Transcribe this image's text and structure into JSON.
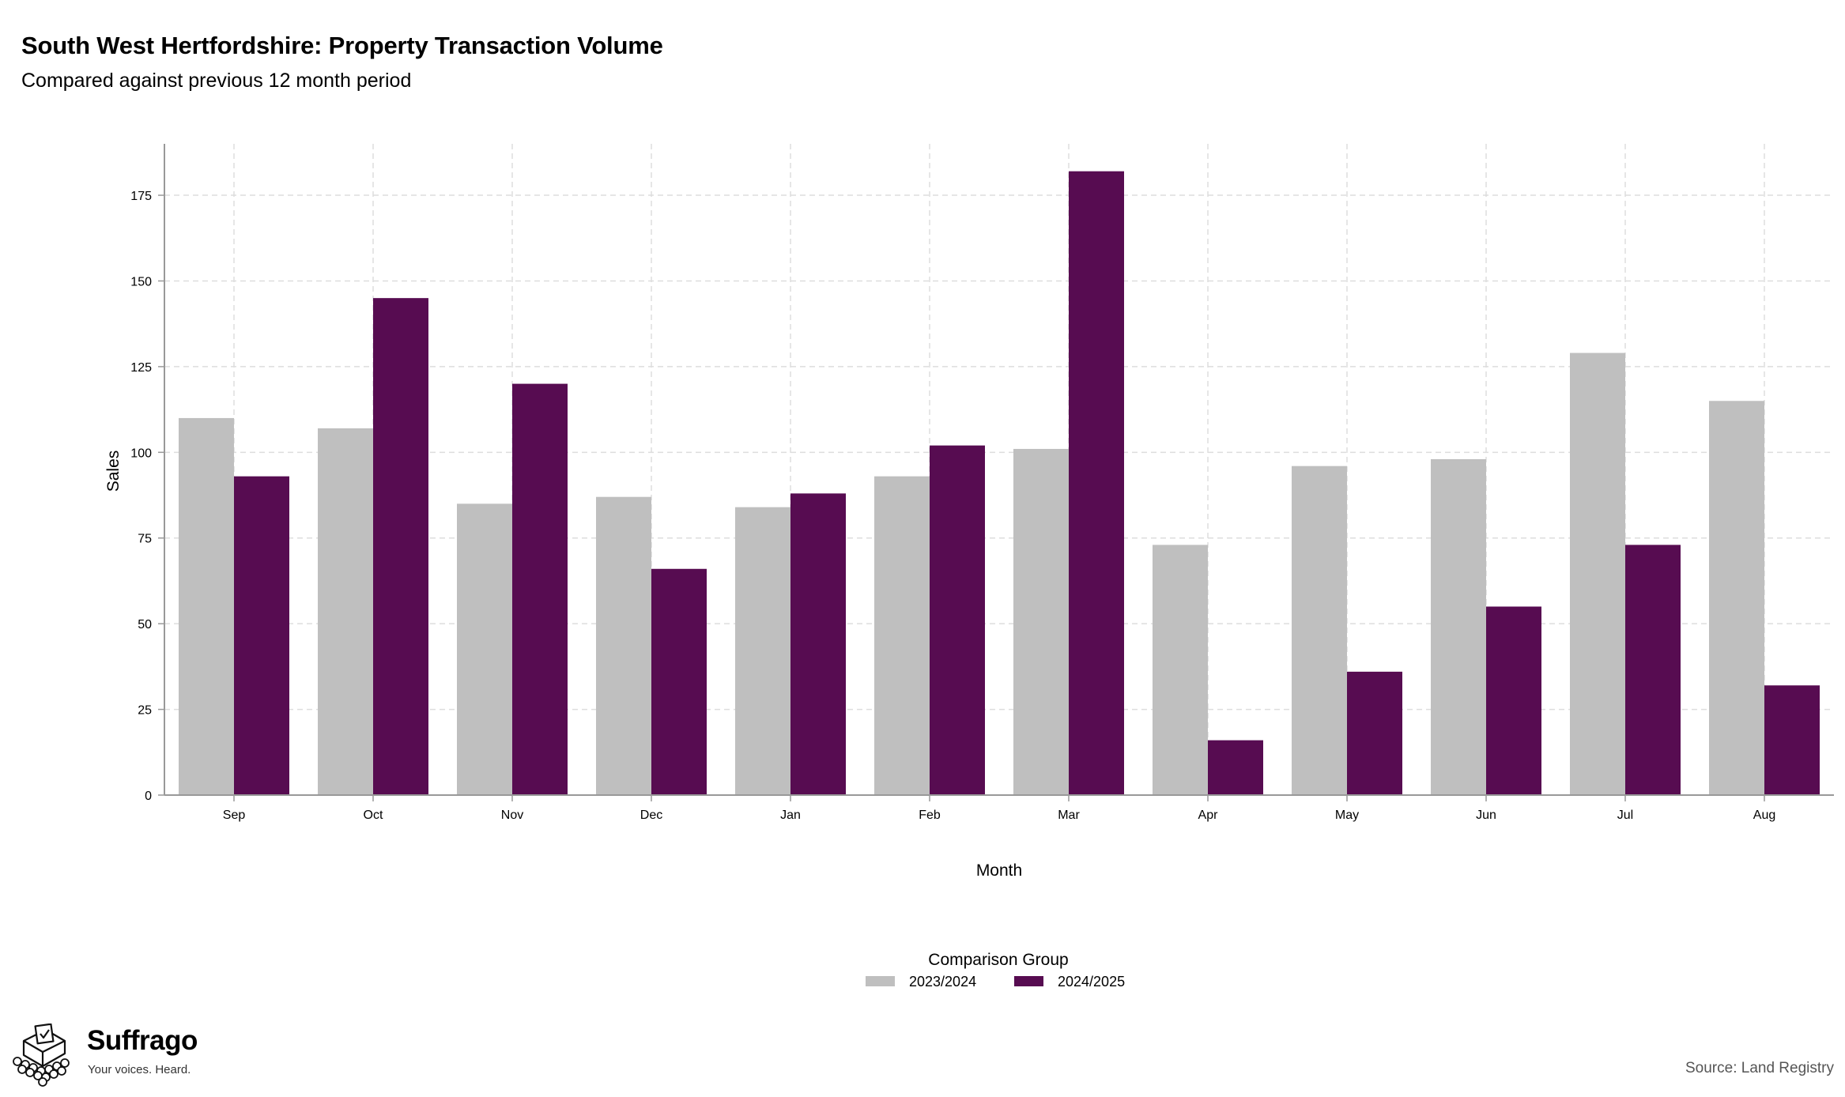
{
  "colors": {
    "series_2023_2024": "#bfbfbf",
    "series_2024_2025": "#570c51",
    "grid": "#dddddd",
    "axis": "#999999"
  },
  "chart_data": {
    "type": "bar",
    "title": "South West Hertfordshire: Property Transaction Volume",
    "subtitle": "Compared against previous 12 month period",
    "xlabel": "Month",
    "ylabel": "Sales",
    "categories": [
      "Sep",
      "Oct",
      "Nov",
      "Dec",
      "Jan",
      "Feb",
      "Mar",
      "Apr",
      "May",
      "Jun",
      "Jul",
      "Aug"
    ],
    "series": [
      {
        "name": "2023/2024",
        "values": [
          110,
          107,
          85,
          87,
          84,
          93,
          101,
          73,
          96,
          98,
          129,
          115
        ]
      },
      {
        "name": "2024/2025",
        "values": [
          93,
          145,
          120,
          66,
          88,
          102,
          182,
          16,
          36,
          55,
          73,
          32
        ]
      }
    ],
    "ylim": [
      0,
      190
    ],
    "yticks": [
      0,
      25,
      50,
      75,
      100,
      125,
      150,
      175
    ],
    "grid": true,
    "grid_style": "dashed",
    "legend_title": "Comparison Group",
    "legend_position": "bottom-center"
  },
  "footer": {
    "source": "Source: Land Registry"
  },
  "logo": {
    "name": "Suffrago",
    "tagline": "Your voices. Heard.",
    "icon": "ballot-box-icon"
  }
}
